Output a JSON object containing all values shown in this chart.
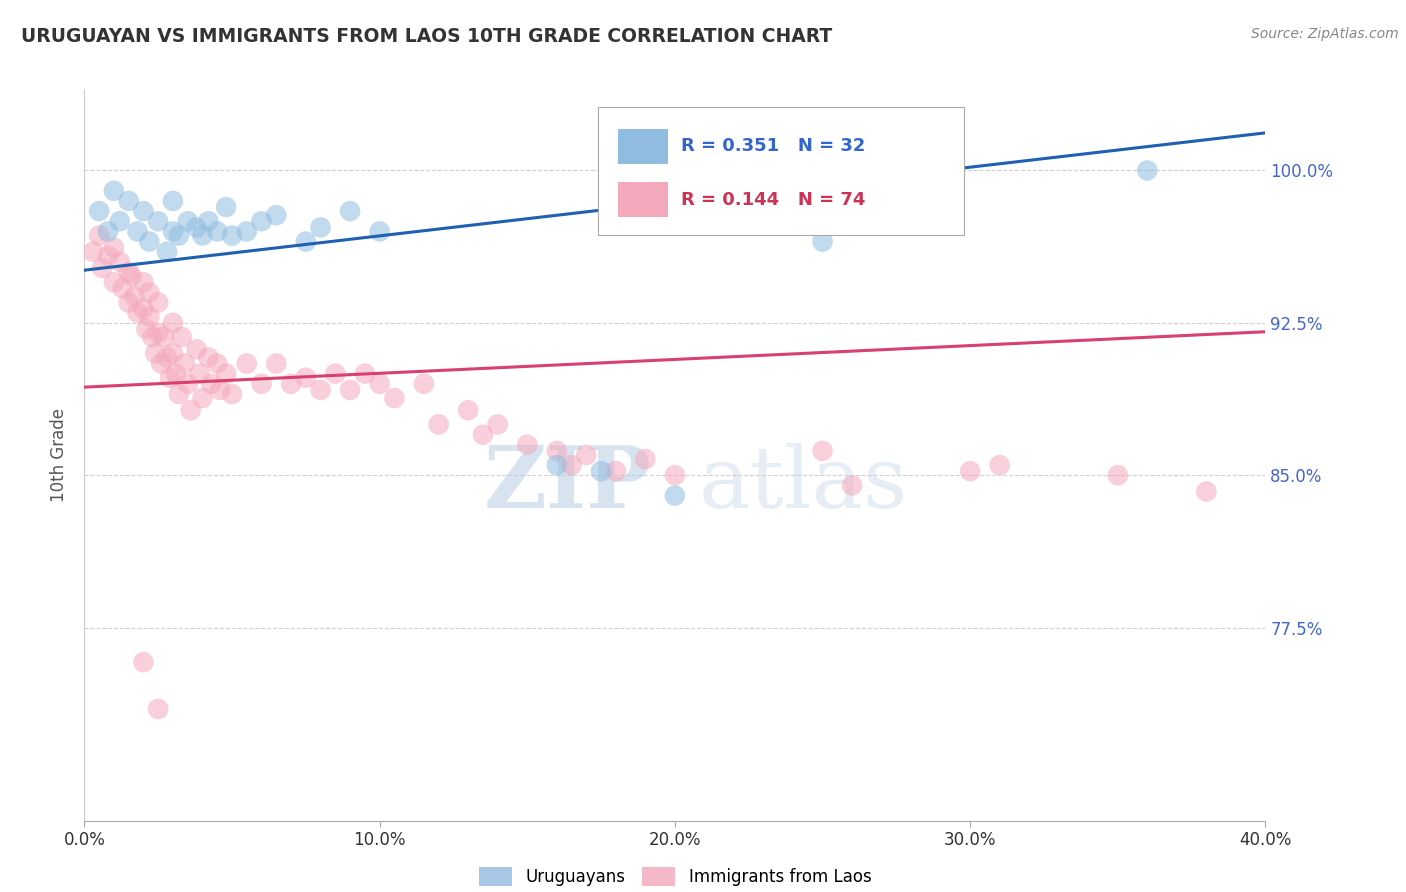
{
  "title": "URUGUAYAN VS IMMIGRANTS FROM LAOS 10TH GRADE CORRELATION CHART",
  "source": "Source: ZipAtlas.com",
  "ylabel": "10th Grade",
  "xlim": [
    0.0,
    0.4
  ],
  "ylim": [
    0.68,
    1.04
  ],
  "yticks": [
    0.775,
    0.85,
    0.925,
    1.0
  ],
  "ytick_labels": [
    "77.5%",
    "85.0%",
    "92.5%",
    "100.0%"
  ],
  "xticks": [
    0.0,
    0.1,
    0.2,
    0.3,
    0.4
  ],
  "xtick_labels": [
    "0.0%",
    "10.0%",
    "20.0%",
    "30.0%",
    "40.0%"
  ],
  "legend_entries": [
    {
      "label": "Uruguayans",
      "color": "#a8c8e8"
    },
    {
      "label": "Immigrants from Laos",
      "color": "#f4b8c8"
    }
  ],
  "r_uruguayan": 0.351,
  "n_uruguayan": 32,
  "r_laos": 0.144,
  "n_laos": 74,
  "uruguayan_color": "#90bce0",
  "laos_color": "#f4a8bc",
  "uruguayan_line_color": "#2060b0",
  "laos_line_color": "#d84070",
  "uruguayan_scatter": [
    [
      0.005,
      0.98
    ],
    [
      0.008,
      0.97
    ],
    [
      0.01,
      0.99
    ],
    [
      0.012,
      0.975
    ],
    [
      0.015,
      0.985
    ],
    [
      0.018,
      0.97
    ],
    [
      0.02,
      0.98
    ],
    [
      0.022,
      0.965
    ],
    [
      0.025,
      0.975
    ],
    [
      0.028,
      0.96
    ],
    [
      0.03,
      0.97
    ],
    [
      0.03,
      0.985
    ],
    [
      0.032,
      0.968
    ],
    [
      0.035,
      0.975
    ],
    [
      0.038,
      0.972
    ],
    [
      0.04,
      0.968
    ],
    [
      0.042,
      0.975
    ],
    [
      0.045,
      0.97
    ],
    [
      0.048,
      0.982
    ],
    [
      0.05,
      0.968
    ],
    [
      0.055,
      0.97
    ],
    [
      0.06,
      0.975
    ],
    [
      0.065,
      0.978
    ],
    [
      0.075,
      0.965
    ],
    [
      0.08,
      0.972
    ],
    [
      0.09,
      0.98
    ],
    [
      0.1,
      0.97
    ],
    [
      0.16,
      0.855
    ],
    [
      0.175,
      0.852
    ],
    [
      0.25,
      0.965
    ],
    [
      0.36,
      1.0
    ],
    [
      0.2,
      0.84
    ]
  ],
  "laos_scatter": [
    [
      0.003,
      0.96
    ],
    [
      0.005,
      0.968
    ],
    [
      0.006,
      0.952
    ],
    [
      0.008,
      0.958
    ],
    [
      0.01,
      0.962
    ],
    [
      0.01,
      0.945
    ],
    [
      0.012,
      0.955
    ],
    [
      0.013,
      0.942
    ],
    [
      0.015,
      0.95
    ],
    [
      0.015,
      0.935
    ],
    [
      0.016,
      0.948
    ],
    [
      0.017,
      0.938
    ],
    [
      0.018,
      0.93
    ],
    [
      0.02,
      0.945
    ],
    [
      0.02,
      0.932
    ],
    [
      0.021,
      0.922
    ],
    [
      0.022,
      0.94
    ],
    [
      0.022,
      0.928
    ],
    [
      0.023,
      0.918
    ],
    [
      0.024,
      0.91
    ],
    [
      0.025,
      0.935
    ],
    [
      0.025,
      0.92
    ],
    [
      0.026,
      0.905
    ],
    [
      0.027,
      0.918
    ],
    [
      0.028,
      0.908
    ],
    [
      0.029,
      0.898
    ],
    [
      0.03,
      0.925
    ],
    [
      0.03,
      0.91
    ],
    [
      0.031,
      0.9
    ],
    [
      0.032,
      0.89
    ],
    [
      0.033,
      0.918
    ],
    [
      0.034,
      0.905
    ],
    [
      0.035,
      0.895
    ],
    [
      0.036,
      0.882
    ],
    [
      0.038,
      0.912
    ],
    [
      0.039,
      0.9
    ],
    [
      0.04,
      0.888
    ],
    [
      0.042,
      0.908
    ],
    [
      0.043,
      0.895
    ],
    [
      0.045,
      0.905
    ],
    [
      0.046,
      0.892
    ],
    [
      0.048,
      0.9
    ],
    [
      0.05,
      0.89
    ],
    [
      0.055,
      0.905
    ],
    [
      0.06,
      0.895
    ],
    [
      0.065,
      0.905
    ],
    [
      0.07,
      0.895
    ],
    [
      0.075,
      0.898
    ],
    [
      0.08,
      0.892
    ],
    [
      0.085,
      0.9
    ],
    [
      0.09,
      0.892
    ],
    [
      0.095,
      0.9
    ],
    [
      0.1,
      0.895
    ],
    [
      0.105,
      0.888
    ],
    [
      0.115,
      0.895
    ],
    [
      0.12,
      0.875
    ],
    [
      0.13,
      0.882
    ],
    [
      0.135,
      0.87
    ],
    [
      0.14,
      0.875
    ],
    [
      0.15,
      0.865
    ],
    [
      0.16,
      0.862
    ],
    [
      0.165,
      0.855
    ],
    [
      0.17,
      0.86
    ],
    [
      0.18,
      0.852
    ],
    [
      0.19,
      0.858
    ],
    [
      0.2,
      0.85
    ],
    [
      0.25,
      0.862
    ],
    [
      0.26,
      0.845
    ],
    [
      0.3,
      0.852
    ],
    [
      0.31,
      0.855
    ],
    [
      0.35,
      0.85
    ],
    [
      0.38,
      0.842
    ],
    [
      0.02,
      0.758
    ],
    [
      0.025,
      0.735
    ]
  ],
  "watermark_zip": "ZIP",
  "watermark_atlas": "atlas",
  "background_color": "#ffffff",
  "grid_color": "#cccccc"
}
